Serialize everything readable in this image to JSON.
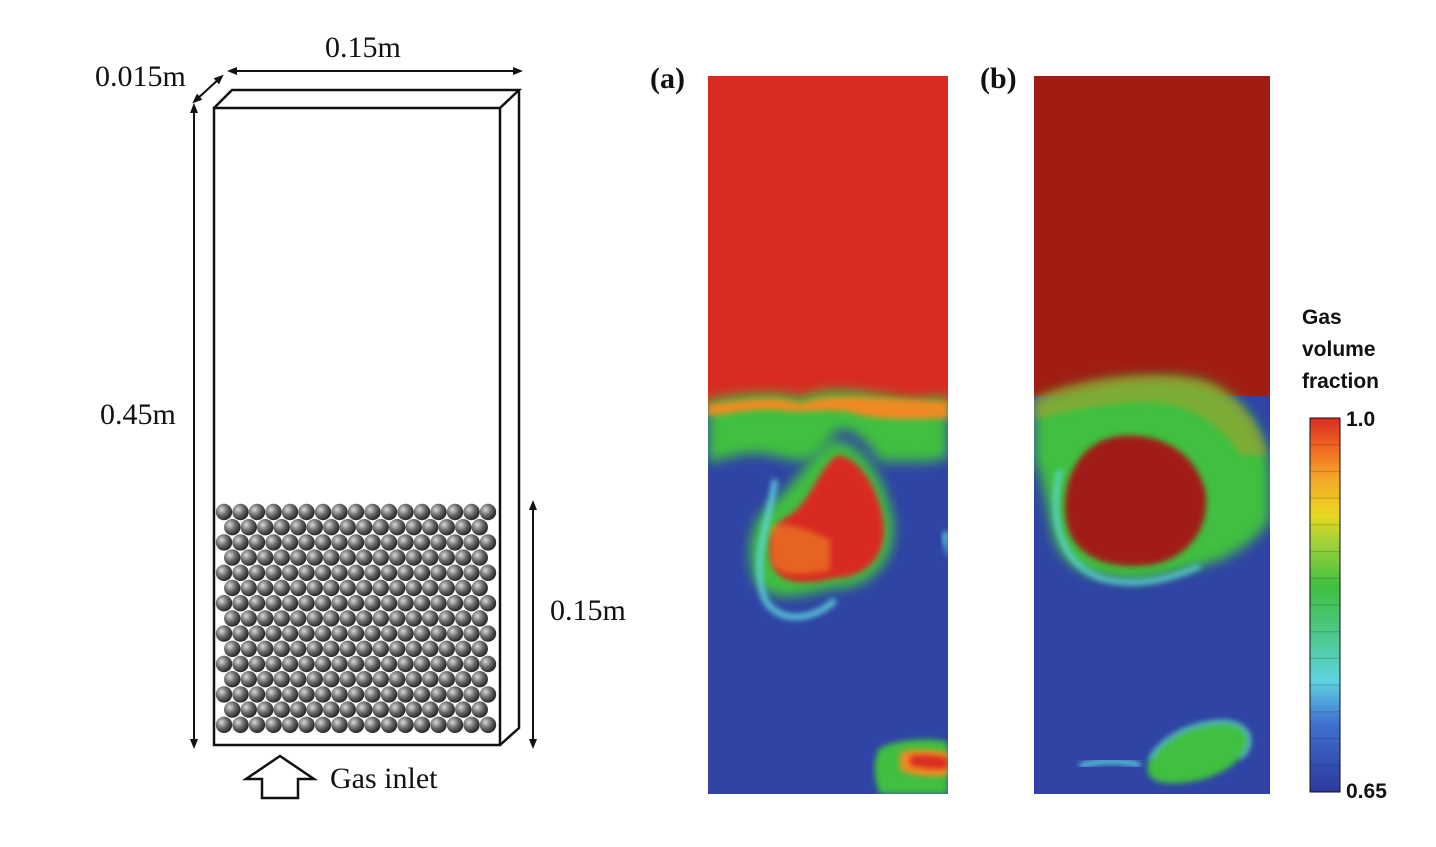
{
  "schematic": {
    "width_label": "0.15m",
    "depth_label": "0.015m",
    "height_label": "0.45m",
    "bed_height_label": "0.15m",
    "inlet_label": "Gas inlet"
  },
  "panels": [
    {
      "label": "(a)"
    },
    {
      "label": "(b)"
    }
  ],
  "legend": {
    "title_lines": [
      "Gas",
      "volume",
      "fraction"
    ],
    "max_label": "1.0",
    "min_label": "0.65",
    "range": [
      0.65,
      1.0
    ]
  },
  "colors": {
    "liquid_blue": "#2f44a4",
    "gas_red_a": "#d92b22",
    "gas_red_b": "#a11d14",
    "green": "#3fbf3f",
    "orange": "#f08a24",
    "yellow": "#e8d81e",
    "cyan": "#5fd8e0"
  }
}
